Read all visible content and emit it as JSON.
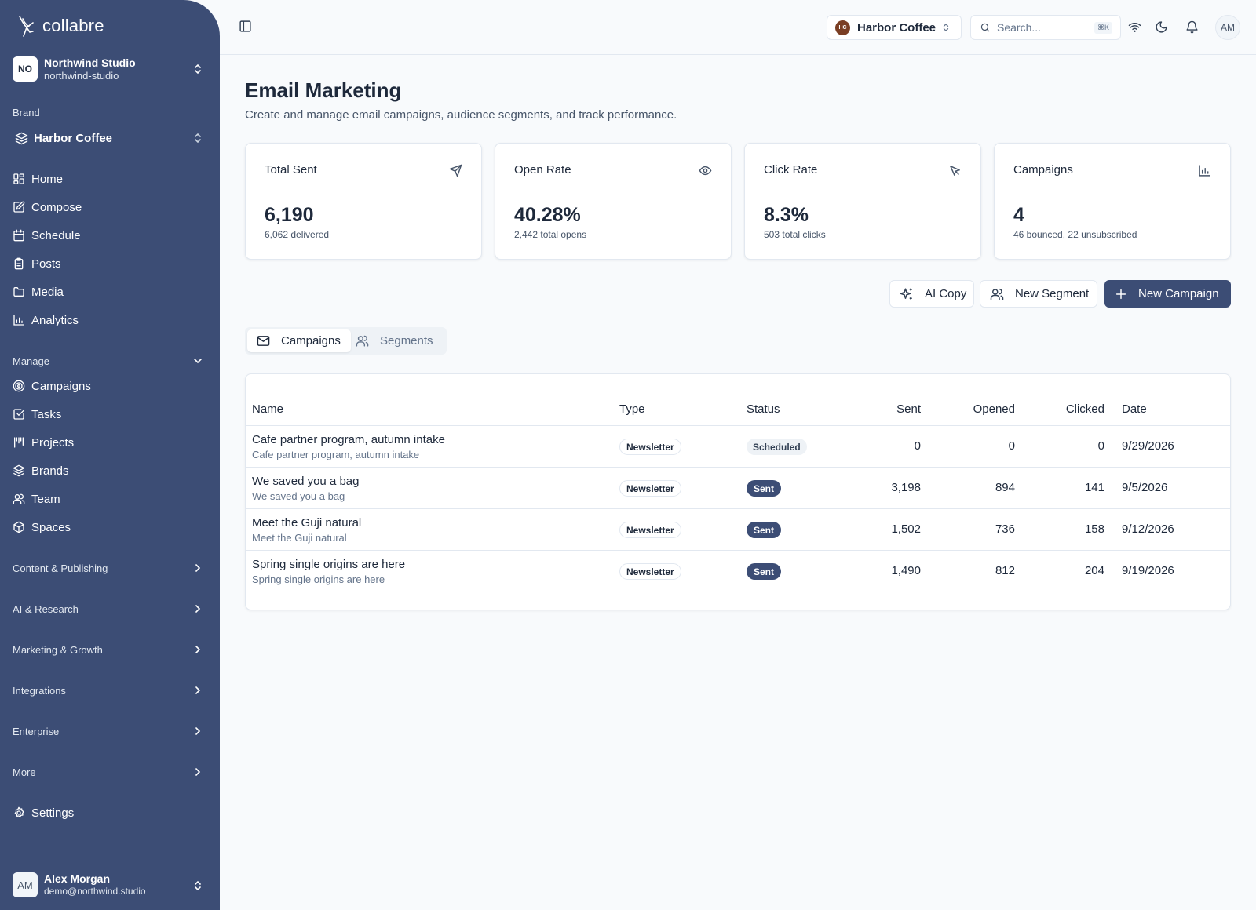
{
  "app": {
    "name": "collabre"
  },
  "org": {
    "initials": "NO",
    "name": "Northwind Studio",
    "slug": "northwind-studio"
  },
  "brand": {
    "label": "Brand",
    "name": "Harbor Coffee",
    "initials": "HC"
  },
  "nav": {
    "main": [
      {
        "label": "Home",
        "icon": "grid-icon"
      },
      {
        "label": "Compose",
        "icon": "edit-icon"
      },
      {
        "label": "Schedule",
        "icon": "calendar-icon"
      },
      {
        "label": "Posts",
        "icon": "clipboard-icon"
      },
      {
        "label": "Media",
        "icon": "folder-icon"
      },
      {
        "label": "Analytics",
        "icon": "bar-chart-icon"
      }
    ],
    "manage_label": "Manage",
    "manage": [
      {
        "label": "Campaigns",
        "icon": "target-icon"
      },
      {
        "label": "Tasks",
        "icon": "checkbox-icon"
      },
      {
        "label": "Projects",
        "icon": "kanban-icon"
      },
      {
        "label": "Brands",
        "icon": "layers-icon"
      },
      {
        "label": "Team",
        "icon": "users-icon"
      },
      {
        "label": "Spaces",
        "icon": "box-icon"
      }
    ],
    "sections": [
      "Content & Publishing",
      "AI & Research",
      "Marketing & Growth",
      "Integrations",
      "Enterprise",
      "More"
    ],
    "settings": "Settings"
  },
  "user": {
    "initials": "AM",
    "name": "Alex Morgan",
    "email": "demo@northwind.studio"
  },
  "topbar": {
    "brand": "Harbor Coffee",
    "search_placeholder": "Search...",
    "shortcut": "⌘K",
    "avatar": "AM"
  },
  "page": {
    "title": "Email Marketing",
    "subtitle": "Create and manage email campaigns, audience segments, and track performance."
  },
  "stats": [
    {
      "label": "Total Sent",
      "value": "6,190",
      "sub": "6,062 delivered",
      "icon": "send-icon"
    },
    {
      "label": "Open Rate",
      "value": "40.28%",
      "sub": "2,442 total opens",
      "icon": "eye-icon"
    },
    {
      "label": "Click Rate",
      "value": "8.3%",
      "sub": "503 total clicks",
      "icon": "cursor-icon"
    },
    {
      "label": "Campaigns",
      "value": "4",
      "sub": "46 bounced, 22 unsubscribed",
      "icon": "bar-chart-icon"
    }
  ],
  "actions": {
    "ai_copy": "AI Copy",
    "new_segment": "New Segment",
    "new_campaign": "New Campaign"
  },
  "tabs": {
    "campaigns": "Campaigns",
    "segments": "Segments"
  },
  "table": {
    "headers": {
      "name": "Name",
      "type": "Type",
      "status": "Status",
      "sent": "Sent",
      "opened": "Opened",
      "clicked": "Clicked",
      "date": "Date"
    },
    "rows": [
      {
        "name": "Cafe partner program, autumn intake",
        "sub": "Cafe partner program, autumn intake",
        "type": "Newsletter",
        "status": "Scheduled",
        "sent": "0",
        "opened": "0",
        "clicked": "0",
        "date": "9/29/2026"
      },
      {
        "name": "We saved you a bag",
        "sub": "We saved you a bag",
        "type": "Newsletter",
        "status": "Sent",
        "sent": "3,198",
        "opened": "894",
        "clicked": "141",
        "date": "9/5/2026"
      },
      {
        "name": "Meet the Guji natural",
        "sub": "Meet the Guji natural",
        "type": "Newsletter",
        "status": "Sent",
        "sent": "1,502",
        "opened": "736",
        "clicked": "158",
        "date": "9/12/2026"
      },
      {
        "name": "Spring single origins are here",
        "sub": "Spring single origins are here",
        "type": "Newsletter",
        "status": "Sent",
        "sent": "1,490",
        "opened": "812",
        "clicked": "204",
        "date": "9/19/2026"
      }
    ]
  },
  "colors": {
    "sidebar": "#3c4d75",
    "primary": "#3c4d75",
    "background": "#f8fafc",
    "border": "#e2e8f0",
    "brand_avatar": "#7a3e24"
  }
}
